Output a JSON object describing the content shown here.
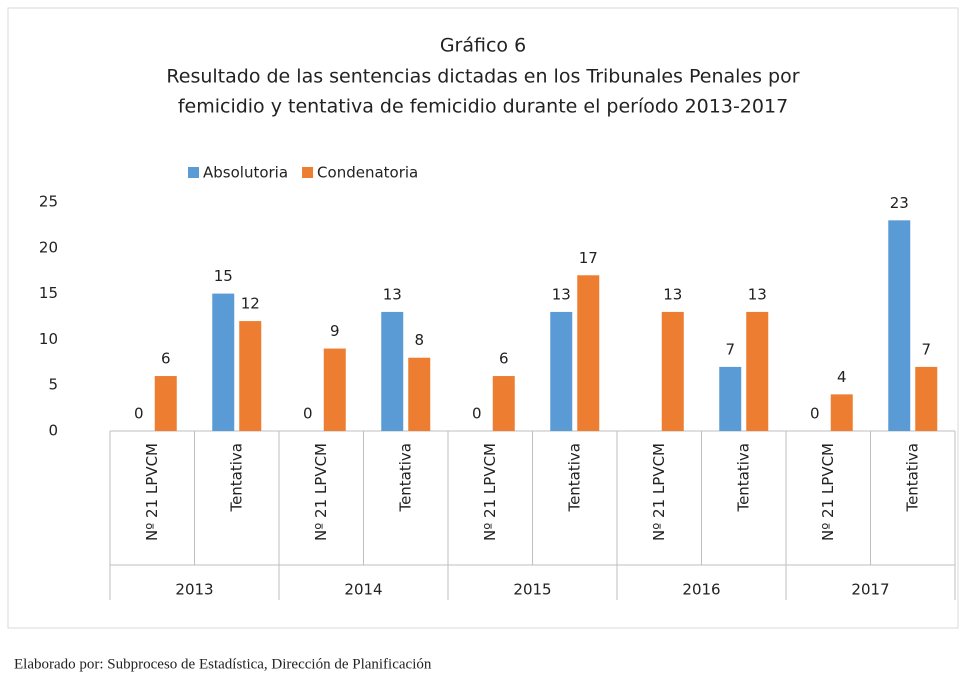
{
  "chart_data": {
    "type": "bar",
    "title": "Gráfico 6",
    "subtitle": [
      "Resultado de las sentencias dictadas en los Tribunales Penales por",
      "femicidio y tentativa de femicidio durante el período 2013-2017"
    ],
    "categories": [
      "Nº 21 LPVCM",
      "Tentativa",
      "Nº 21 LPVCM",
      "Tentativa",
      "Nº 21 LPVCM",
      "Tentativa",
      "Nº 21 LPVCM",
      "Tentativa",
      "Nº 21 LPVCM",
      "Tentativa"
    ],
    "groups": [
      "2013",
      "2014",
      "2015",
      "2016",
      "2017"
    ],
    "series": [
      {
        "name": "Absolutoria",
        "color": "#5b9bd5",
        "values": [
          0,
          15,
          0,
          13,
          0,
          13,
          null,
          7,
          0,
          23
        ]
      },
      {
        "name": "Condenatoria",
        "color": "#ed7d31",
        "values": [
          6,
          12,
          9,
          8,
          6,
          17,
          13,
          13,
          4,
          7
        ]
      }
    ],
    "ylim": [
      0,
      25
    ],
    "yticks": [
      0,
      5,
      10,
      15,
      20,
      25
    ],
    "grid": false,
    "legend": "top",
    "source": "Elaborado por: Subproceso de Estadística, Dirección de Planificación"
  }
}
